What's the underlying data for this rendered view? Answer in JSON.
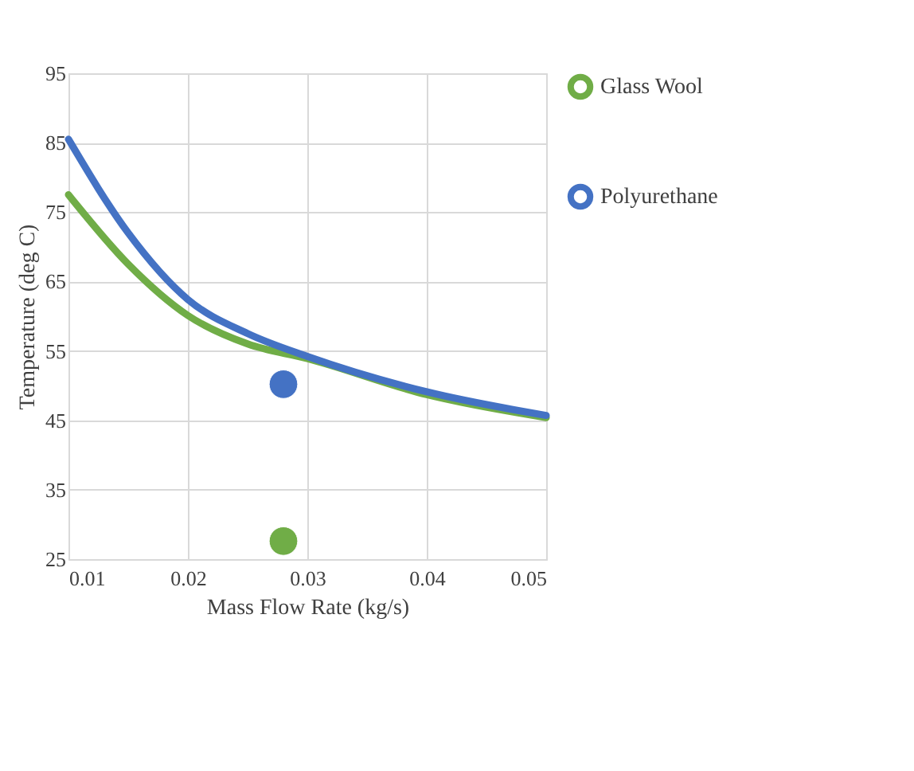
{
  "chart_data": {
    "type": "line",
    "xlabel": "Mass Flow Rate (kg/s)",
    "ylabel": "Temperature (deg C)",
    "xlim": [
      0.01,
      0.05
    ],
    "xticks": [
      {
        "value": 0.01,
        "label": "0.01"
      },
      {
        "value": 0.02,
        "label": "0.02"
      },
      {
        "value": 0.03,
        "label": "0.03"
      },
      {
        "value": 0.04,
        "label": "0.04"
      },
      {
        "value": 0.05,
        "label": "0.05"
      }
    ],
    "ylim": [
      25,
      95
    ],
    "yticks": [
      25,
      35,
      45,
      55,
      65,
      75,
      85,
      95
    ],
    "grid": true,
    "legend": "right",
    "series": [
      {
        "name": "Glass Wool",
        "color": "#70ad47",
        "marker": "none",
        "x": [
          0.01,
          0.015,
          0.02,
          0.025,
          0.03,
          0.04,
          0.05
        ],
        "values": [
          77.5,
          67.5,
          60.1,
          56.0,
          53.9,
          48.7,
          45.4
        ]
      },
      {
        "name": "Polyurethane",
        "color": "#4472c4",
        "marker": "none",
        "x": [
          0.01,
          0.015,
          0.02,
          0.025,
          0.03,
          0.04,
          0.05
        ],
        "values": [
          85.5,
          72.0,
          62.4,
          57.5,
          54.2,
          49.1,
          45.7
        ]
      },
      {
        "color": "#70ad47",
        "type": "scatter",
        "marker": "circle",
        "x": [
          0.028
        ],
        "values": [
          27.6
        ]
      },
      {
        "color": "#4472c4",
        "type": "scatter",
        "marker": "circle",
        "x": [
          0.028
        ],
        "values": [
          50.2
        ]
      }
    ]
  }
}
